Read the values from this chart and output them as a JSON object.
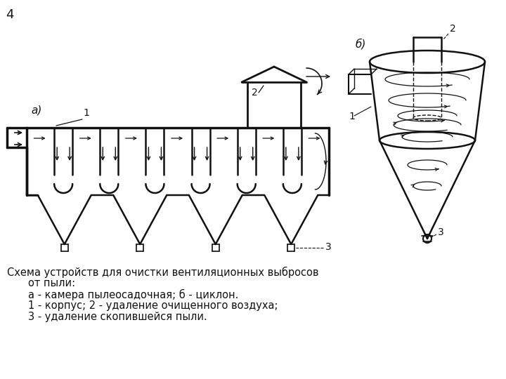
{
  "page_number": "4",
  "caption_line1": "Схема устройств для очистки вентиляционных выбросов",
  "caption_line2": "от пыли:",
  "caption_line3": "а - камера пылеосадочная; б - циклон.",
  "caption_line4": "1 - корпус; 2 - удаление очищенного воздуха;",
  "caption_line5": "3 - удаление скопившейся пыли.",
  "label_a": "а)",
  "label_b": "б)",
  "background_color": "#ffffff",
  "line_color": "#111111",
  "text_color": "#111111",
  "font_size_caption": 10.5,
  "font_size_label": 11
}
